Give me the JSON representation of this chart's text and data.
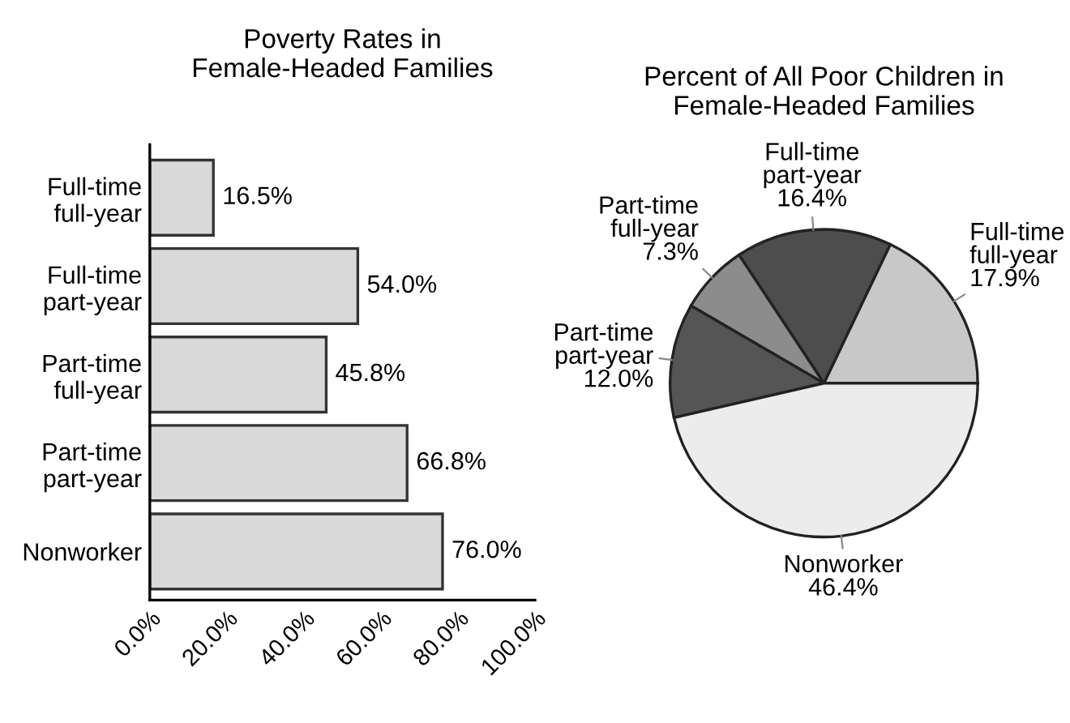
{
  "chart_data": [
    {
      "type": "bar",
      "orientation": "horizontal",
      "title": "Poverty Rates in\nFemale-Headed Families",
      "categories": [
        "Full-time\nfull-year",
        "Full-time\npart-year",
        "Part-time\nfull-year",
        "Part-time\npart-year",
        "Nonworker"
      ],
      "values": [
        16.5,
        54.0,
        45.8,
        66.8,
        76.0
      ],
      "color": "#d9d9d9",
      "value_labels": [
        "16.5%",
        "54.0%",
        "45.8%",
        "66.8%",
        "76.0%"
      ],
      "xlim": [
        0,
        100
      ],
      "xticks": [
        {
          "value": 0,
          "label": "0.0%"
        },
        {
          "value": 20,
          "label": "20.0%"
        },
        {
          "value": 40,
          "label": "40.0%"
        },
        {
          "value": 60,
          "label": "60.0%"
        },
        {
          "value": 80,
          "label": "80.0%"
        },
        {
          "value": 100,
          "label": "100.0%"
        }
      ],
      "grid": false
    },
    {
      "type": "pie",
      "title": "Percent of All Poor Children in\nFemale-Headed Families",
      "categories": [
        "Full-time\nfull-year",
        "Full-time\npart-year",
        "Part-time\nfull-year",
        "Part-time\npart-year",
        "Nonworker"
      ],
      "values": [
        17.9,
        16.4,
        7.3,
        12.0,
        46.4
      ],
      "colors": [
        "#c8c8c8",
        "#4d4d4d",
        "#8c8c8c",
        "#555555",
        "#ececec"
      ],
      "value_labels": [
        "17.9%",
        "16.4%",
        "7.3%",
        "12.0%",
        "46.4%"
      ],
      "legend": false
    }
  ]
}
